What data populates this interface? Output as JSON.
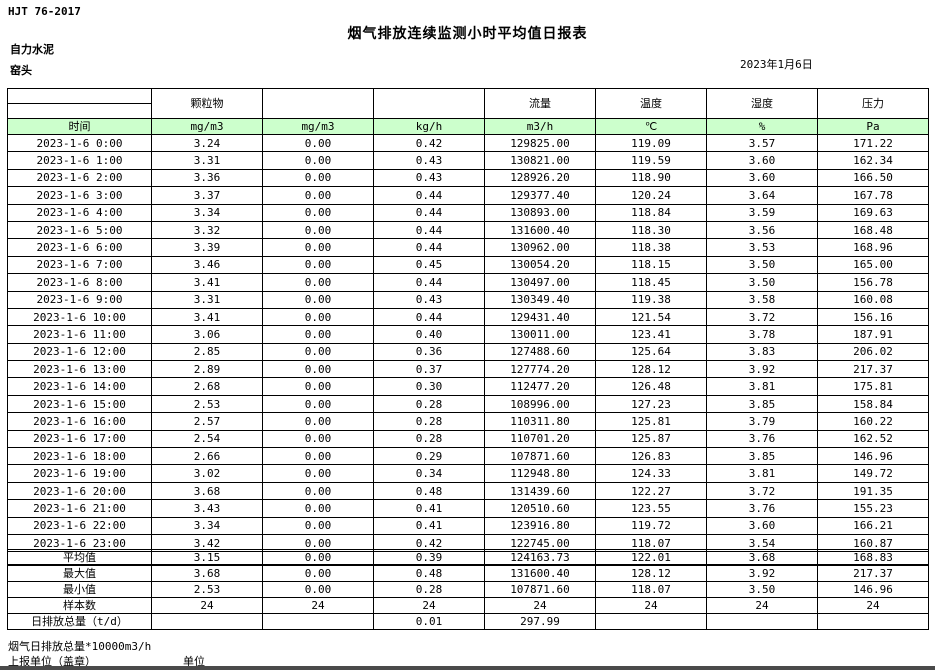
{
  "header": {
    "doc_code": "HJT 76-2017",
    "title": "烟气排放连续监测小时平均值日报表",
    "company": "自力水泥",
    "station": "窑头",
    "date": "2023年1月6日"
  },
  "table": {
    "groups": [
      "颗粒物",
      "",
      "",
      "流量",
      "温度",
      "湿度",
      "压力"
    ],
    "units": [
      "时间",
      "mg/m3",
      "mg/m3",
      "kg/h",
      "m3/h",
      "℃",
      "%",
      "Pa"
    ],
    "rows": [
      [
        "2023-1-6 0:00",
        "3.24",
        "0.00",
        "0.42",
        "129825.00",
        "119.09",
        "3.57",
        "171.22"
      ],
      [
        "2023-1-6 1:00",
        "3.31",
        "0.00",
        "0.43",
        "130821.00",
        "119.59",
        "3.60",
        "162.34"
      ],
      [
        "2023-1-6 2:00",
        "3.36",
        "0.00",
        "0.43",
        "128926.20",
        "118.90",
        "3.60",
        "166.50"
      ],
      [
        "2023-1-6 3:00",
        "3.37",
        "0.00",
        "0.44",
        "129377.40",
        "120.24",
        "3.64",
        "167.78"
      ],
      [
        "2023-1-6 4:00",
        "3.34",
        "0.00",
        "0.44",
        "130893.00",
        "118.84",
        "3.59",
        "169.63"
      ],
      [
        "2023-1-6 5:00",
        "3.32",
        "0.00",
        "0.44",
        "131600.40",
        "118.30",
        "3.56",
        "168.48"
      ],
      [
        "2023-1-6 6:00",
        "3.39",
        "0.00",
        "0.44",
        "130962.00",
        "118.38",
        "3.53",
        "168.96"
      ],
      [
        "2023-1-6 7:00",
        "3.46",
        "0.00",
        "0.45",
        "130054.20",
        "118.15",
        "3.50",
        "165.00"
      ],
      [
        "2023-1-6 8:00",
        "3.41",
        "0.00",
        "0.44",
        "130497.00",
        "118.45",
        "3.50",
        "156.78"
      ],
      [
        "2023-1-6 9:00",
        "3.31",
        "0.00",
        "0.43",
        "130349.40",
        "119.38",
        "3.58",
        "160.08"
      ],
      [
        "2023-1-6 10:00",
        "3.41",
        "0.00",
        "0.44",
        "129431.40",
        "121.54",
        "3.72",
        "156.16"
      ],
      [
        "2023-1-6 11:00",
        "3.06",
        "0.00",
        "0.40",
        "130011.00",
        "123.41",
        "3.78",
        "187.91"
      ],
      [
        "2023-1-6 12:00",
        "2.85",
        "0.00",
        "0.36",
        "127488.60",
        "125.64",
        "3.83",
        "206.02"
      ],
      [
        "2023-1-6 13:00",
        "2.89",
        "0.00",
        "0.37",
        "127774.20",
        "128.12",
        "3.92",
        "217.37"
      ],
      [
        "2023-1-6 14:00",
        "2.68",
        "0.00",
        "0.30",
        "112477.20",
        "126.48",
        "3.81",
        "175.81"
      ],
      [
        "2023-1-6 15:00",
        "2.53",
        "0.00",
        "0.28",
        "108996.00",
        "127.23",
        "3.85",
        "158.84"
      ],
      [
        "2023-1-6 16:00",
        "2.57",
        "0.00",
        "0.28",
        "110311.80",
        "125.81",
        "3.79",
        "160.22"
      ],
      [
        "2023-1-6 17:00",
        "2.54",
        "0.00",
        "0.28",
        "110701.20",
        "125.87",
        "3.76",
        "162.52"
      ],
      [
        "2023-1-6 18:00",
        "2.66",
        "0.00",
        "0.29",
        "107871.60",
        "126.83",
        "3.85",
        "146.96"
      ],
      [
        "2023-1-6 19:00",
        "3.02",
        "0.00",
        "0.34",
        "112948.80",
        "124.33",
        "3.81",
        "149.72"
      ],
      [
        "2023-1-6 20:00",
        "3.68",
        "0.00",
        "0.48",
        "131439.60",
        "122.27",
        "3.72",
        "191.35"
      ],
      [
        "2023-1-6 21:00",
        "3.43",
        "0.00",
        "0.41",
        "120510.60",
        "123.55",
        "3.76",
        "155.23"
      ],
      [
        "2023-1-6 22:00",
        "3.34",
        "0.00",
        "0.41",
        "123916.80",
        "119.72",
        "3.60",
        "166.21"
      ],
      [
        "2023-1-6 23:00",
        "3.42",
        "0.00",
        "0.42",
        "122745.00",
        "118.07",
        "3.54",
        "160.87"
      ]
    ]
  },
  "summary": {
    "rows": [
      [
        "平均值",
        "3.15",
        "0.00",
        "0.39",
        "124163.73",
        "122.01",
        "3.68",
        "168.83"
      ],
      [
        "最大值",
        "3.68",
        "0.00",
        "0.48",
        "131600.40",
        "128.12",
        "3.92",
        "217.37"
      ],
      [
        "最小值",
        "2.53",
        "0.00",
        "0.28",
        "107871.60",
        "118.07",
        "3.50",
        "146.96"
      ],
      [
        "样本数",
        "24",
        "24",
        "24",
        "24",
        "24",
        "24",
        "24"
      ],
      [
        "日排放总量（t/d）",
        "",
        "",
        "0.01",
        "297.99",
        "",
        "",
        ""
      ]
    ]
  },
  "footer": {
    "note": "烟气日排放总量*10000m3/h",
    "report_unit": "上报单位（盖章）",
    "unit": "单位"
  }
}
